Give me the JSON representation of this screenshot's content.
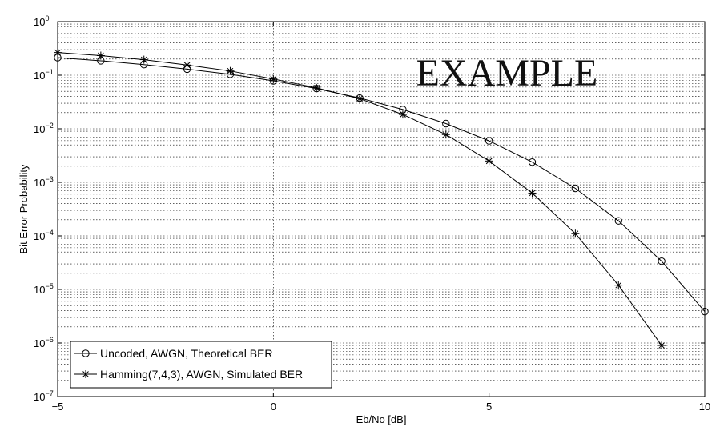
{
  "chart_data": {
    "type": "line",
    "title": "",
    "xlabel": "Eb/No [dB]",
    "ylabel": "Bit Error Probability",
    "xlim": [
      -5,
      10
    ],
    "ylim": [
      1e-07,
      1
    ],
    "yscale": "log",
    "grid": true,
    "legend_position": "bottom-left",
    "x_ticks": [
      {
        "value": -5,
        "label": "−5"
      },
      {
        "value": 0,
        "label": "0"
      },
      {
        "value": 5,
        "label": "5"
      },
      {
        "value": 10,
        "label": "10"
      }
    ],
    "y_ticks": [
      {
        "exp": 0,
        "label_base": "10",
        "label_exp": "0"
      },
      {
        "exp": -1,
        "label_base": "10",
        "label_exp": "−1"
      },
      {
        "exp": -2,
        "label_base": "10",
        "label_exp": "−2"
      },
      {
        "exp": -3,
        "label_base": "10",
        "label_exp": "−3"
      },
      {
        "exp": -4,
        "label_base": "10",
        "label_exp": "−4"
      },
      {
        "exp": -5,
        "label_base": "10",
        "label_exp": "−5"
      },
      {
        "exp": -6,
        "label_base": "10",
        "label_exp": "−6"
      },
      {
        "exp": -7,
        "label_base": "10",
        "label_exp": "−7"
      }
    ],
    "series": [
      {
        "name": "Uncoded, AWGN, Theoretical BER",
        "marker": "circle",
        "color": "#000000",
        "x": [
          -5,
          -4,
          -3,
          -2,
          -1,
          0,
          1,
          2,
          3,
          4,
          5,
          6,
          7,
          8,
          9,
          10
        ],
        "y": [
          0.213,
          0.186,
          0.158,
          0.13,
          0.104,
          0.0786,
          0.0563,
          0.0375,
          0.0229,
          0.0125,
          0.00595,
          0.00239,
          0.000773,
          0.000191,
          3.36e-05,
          3.87e-06
        ]
      },
      {
        "name": "Hamming(7,4,3), AWGN, Simulated BER",
        "marker": "asterisk",
        "color": "#000000",
        "x": [
          -5,
          -4,
          -3,
          -2,
          -1,
          0,
          1,
          2,
          3,
          4,
          5,
          6,
          7,
          8,
          9
        ],
        "y": [
          0.265,
          0.232,
          0.195,
          0.155,
          0.12,
          0.085,
          0.058,
          0.0365,
          0.0185,
          0.0078,
          0.0025,
          0.00063,
          0.00011,
          1.2e-05,
          9e-07
        ]
      }
    ]
  },
  "watermark": {
    "text": "EXAMPLE"
  }
}
